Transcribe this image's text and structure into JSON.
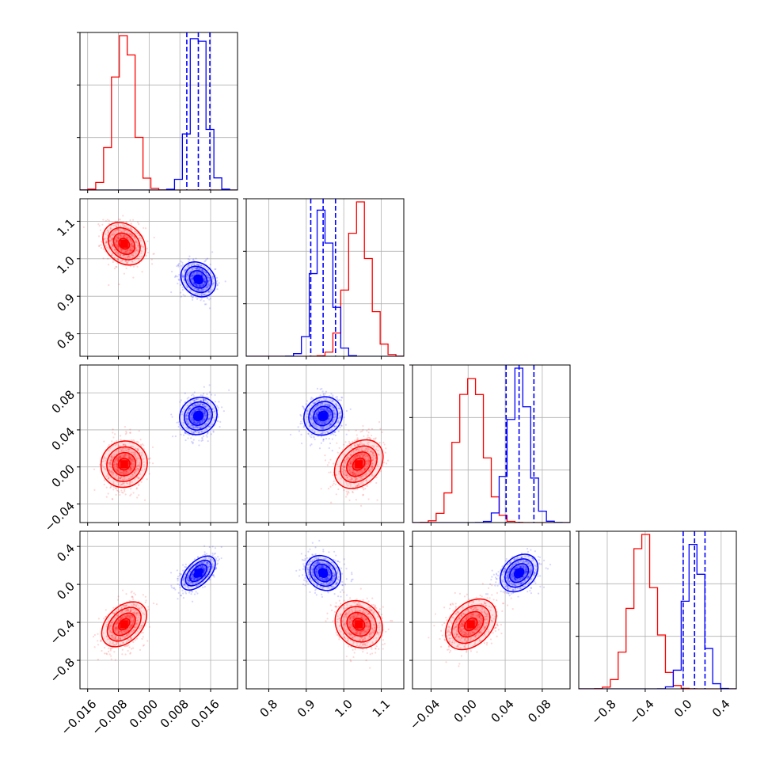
{
  "chart_data": {
    "type": "scatter",
    "subtype": "corner-plot",
    "grid": true,
    "params": [
      {
        "range": [
          -0.018,
          0.023
        ],
        "ticks": [
          -0.016,
          -0.008,
          0.0,
          0.008,
          0.016
        ],
        "tick_labels": [
          "−0.016",
          "−0.008",
          "0.000",
          "0.008",
          "0.016"
        ]
      },
      {
        "range": [
          0.74,
          1.16
        ],
        "ticks": [
          0.8,
          0.9,
          1.0,
          1.1
        ],
        "tick_labels": [
          "0.8",
          "0.9",
          "1.0",
          "1.1"
        ]
      },
      {
        "range": [
          -0.06,
          0.11
        ],
        "ticks": [
          -0.04,
          0.0,
          0.04,
          0.08
        ],
        "tick_labels": [
          "−0.04",
          "0.00",
          "0.04",
          "0.08"
        ],
        "y_tick_labels": [
          "−0.04",
          "0.00",
          "0.04",
          "0.08"
        ]
      },
      {
        "range": [
          -1.1,
          0.56
        ],
        "ticks": [
          -0.8,
          -0.4,
          0.0,
          0.4
        ],
        "tick_labels": [
          "−0.8",
          "−0.4",
          "0.0",
          "0.4"
        ]
      }
    ],
    "series": [
      {
        "color": "#ff0000",
        "mean": [
          -0.0065,
          1.04,
          0.003,
          -0.42
        ],
        "sd": [
          0.0026,
          0.03,
          0.014,
          0.13
        ],
        "corr": [
          [
            0,
            1,
            -0.25
          ],
          [
            0,
            2,
            0.05
          ],
          [
            0,
            3,
            0.4
          ],
          [
            1,
            2,
            0.3
          ],
          [
            1,
            3,
            -0.15
          ],
          [
            2,
            3,
            0.35
          ]
        ]
      },
      {
        "color": "#0000ff",
        "mean": [
          0.0128,
          0.945,
          0.055,
          0.12
        ],
        "sd": [
          0.0022,
          0.024,
          0.011,
          0.09
        ],
        "corr": [
          [
            0,
            1,
            -0.2
          ],
          [
            0,
            2,
            0.1
          ],
          [
            0,
            3,
            0.55
          ],
          [
            1,
            2,
            0.1
          ],
          [
            1,
            3,
            -0.2
          ],
          [
            2,
            3,
            0.3
          ]
        ]
      }
    ],
    "quantile_lines": {
      "color": "#0000ff",
      "values": [
        [
          0.0098,
          0.0128,
          0.0158
        ],
        [
          0.912,
          0.945,
          0.978
        ],
        [
          0.041,
          0.055,
          0.071
        ],
        [
          0.0,
          0.12,
          0.23
        ]
      ]
    }
  }
}
